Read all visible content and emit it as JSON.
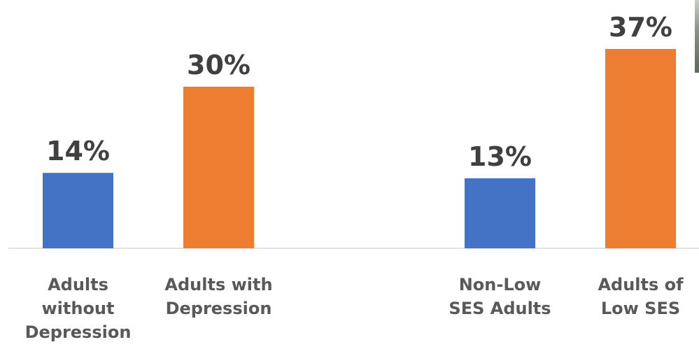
{
  "chart_data": {
    "type": "bar",
    "title": "",
    "xlabel": "",
    "ylabel": "",
    "ylim": [
      0,
      40
    ],
    "grid": false,
    "legend": "none",
    "groups": [
      {
        "categories": [
          {
            "label_lines": [
              "Adults",
              "without",
              "Depression"
            ],
            "value": 14,
            "data_label": "14%",
            "color": "#4472C4"
          },
          {
            "label_lines": [
              "Adults with",
              "Depression"
            ],
            "value": 30,
            "data_label": "30%",
            "color": "#ED7D31"
          }
        ]
      },
      {
        "categories": [
          {
            "label_lines": [
              "Non-Low",
              "SES Adults"
            ],
            "value": 13,
            "data_label": "13%",
            "color": "#4472C4"
          },
          {
            "label_lines": [
              "Adults of",
              "Low SES"
            ],
            "value": 37,
            "data_label": "37%",
            "color": "#ED7D31"
          }
        ]
      }
    ]
  },
  "colors": {
    "baseline": "#d9d9d9",
    "label_text": "#404040",
    "category_text": "#595959"
  }
}
